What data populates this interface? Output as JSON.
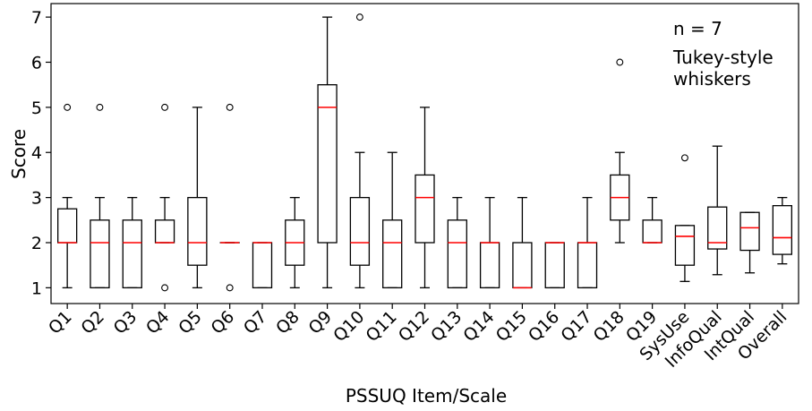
{
  "chart_data": {
    "type": "boxplot",
    "xlabel": "PSSUQ Item/Scale",
    "ylabel": "Score",
    "ylim": [
      0.65,
      7.3
    ],
    "yticks": [
      1,
      2,
      3,
      4,
      5,
      6,
      7
    ],
    "median_color": "#ff0000",
    "annotations": [
      "n = 7",
      "Tukey-style",
      "whiskers"
    ],
    "boxes": [
      {
        "category": "Q1",
        "whislo": 1,
        "q1": 2,
        "med": 2,
        "q3": 2.75,
        "whishi": 3,
        "fliers": [
          5
        ]
      },
      {
        "category": "Q2",
        "whislo": 1,
        "q1": 1,
        "med": 2,
        "q3": 2.5,
        "whishi": 3,
        "fliers": [
          5
        ]
      },
      {
        "category": "Q3",
        "whislo": 1,
        "q1": 1,
        "med": 2,
        "q3": 2.5,
        "whishi": 3,
        "fliers": []
      },
      {
        "category": "Q4",
        "whislo": 2,
        "q1": 2,
        "med": 2,
        "q3": 2.5,
        "whishi": 3,
        "fliers": [
          5,
          1
        ]
      },
      {
        "category": "Q5",
        "whislo": 1,
        "q1": 1.5,
        "med": 2,
        "q3": 3,
        "whishi": 5,
        "fliers": []
      },
      {
        "category": "Q6",
        "whislo": 2,
        "q1": 2,
        "med": 2,
        "q3": 2,
        "whishi": 2,
        "fliers": [
          5,
          1
        ]
      },
      {
        "category": "Q7",
        "whislo": 1,
        "q1": 1,
        "med": 2,
        "q3": 2,
        "whishi": 2,
        "fliers": []
      },
      {
        "category": "Q8",
        "whislo": 1,
        "q1": 1.5,
        "med": 2,
        "q3": 2.5,
        "whishi": 3,
        "fliers": []
      },
      {
        "category": "Q9",
        "whislo": 1,
        "q1": 2,
        "med": 5,
        "q3": 5.5,
        "whishi": 7,
        "fliers": []
      },
      {
        "category": "Q10",
        "whislo": 1,
        "q1": 1.5,
        "med": 2,
        "q3": 3,
        "whishi": 4,
        "fliers": [
          7
        ]
      },
      {
        "category": "Q11",
        "whislo": 1,
        "q1": 1,
        "med": 2,
        "q3": 2.5,
        "whishi": 4,
        "fliers": []
      },
      {
        "category": "Q12",
        "whislo": 1,
        "q1": 2,
        "med": 3,
        "q3": 3.5,
        "whishi": 5,
        "fliers": []
      },
      {
        "category": "Q13",
        "whislo": 1,
        "q1": 1,
        "med": 2,
        "q3": 2.5,
        "whishi": 3,
        "fliers": []
      },
      {
        "category": "Q14",
        "whislo": 1,
        "q1": 1,
        "med": 2,
        "q3": 2,
        "whishi": 3,
        "fliers": []
      },
      {
        "category": "Q15",
        "whislo": 1,
        "q1": 1,
        "med": 1,
        "q3": 2,
        "whishi": 3,
        "fliers": []
      },
      {
        "category": "Q16",
        "whislo": 1,
        "q1": 1,
        "med": 2,
        "q3": 2,
        "whishi": 2,
        "fliers": []
      },
      {
        "category": "Q17",
        "whislo": 1,
        "q1": 1,
        "med": 2,
        "q3": 2,
        "whishi": 3,
        "fliers": []
      },
      {
        "category": "Q18",
        "whislo": 2,
        "q1": 2.5,
        "med": 3,
        "q3": 3.5,
        "whishi": 4,
        "fliers": [
          6
        ]
      },
      {
        "category": "Q19",
        "whislo": 2,
        "q1": 2,
        "med": 2,
        "q3": 2.5,
        "whishi": 3,
        "fliers": []
      },
      {
        "category": "SysUse",
        "whislo": 1.14,
        "q1": 1.5,
        "med": 2.14,
        "q3": 2.38,
        "whishi": 2.38,
        "fliers": [
          3.88
        ]
      },
      {
        "category": "InfoQual",
        "whislo": 1.29,
        "q1": 1.86,
        "med": 2.0,
        "q3": 2.79,
        "whishi": 4.14,
        "fliers": []
      },
      {
        "category": "IntQual",
        "whislo": 1.33,
        "q1": 1.83,
        "med": 2.33,
        "q3": 2.67,
        "whishi": 2.67,
        "fliers": []
      },
      {
        "category": "Overall",
        "whislo": 1.53,
        "q1": 1.74,
        "med": 2.11,
        "q3": 2.82,
        "whishi": 3.0,
        "fliers": []
      }
    ]
  }
}
